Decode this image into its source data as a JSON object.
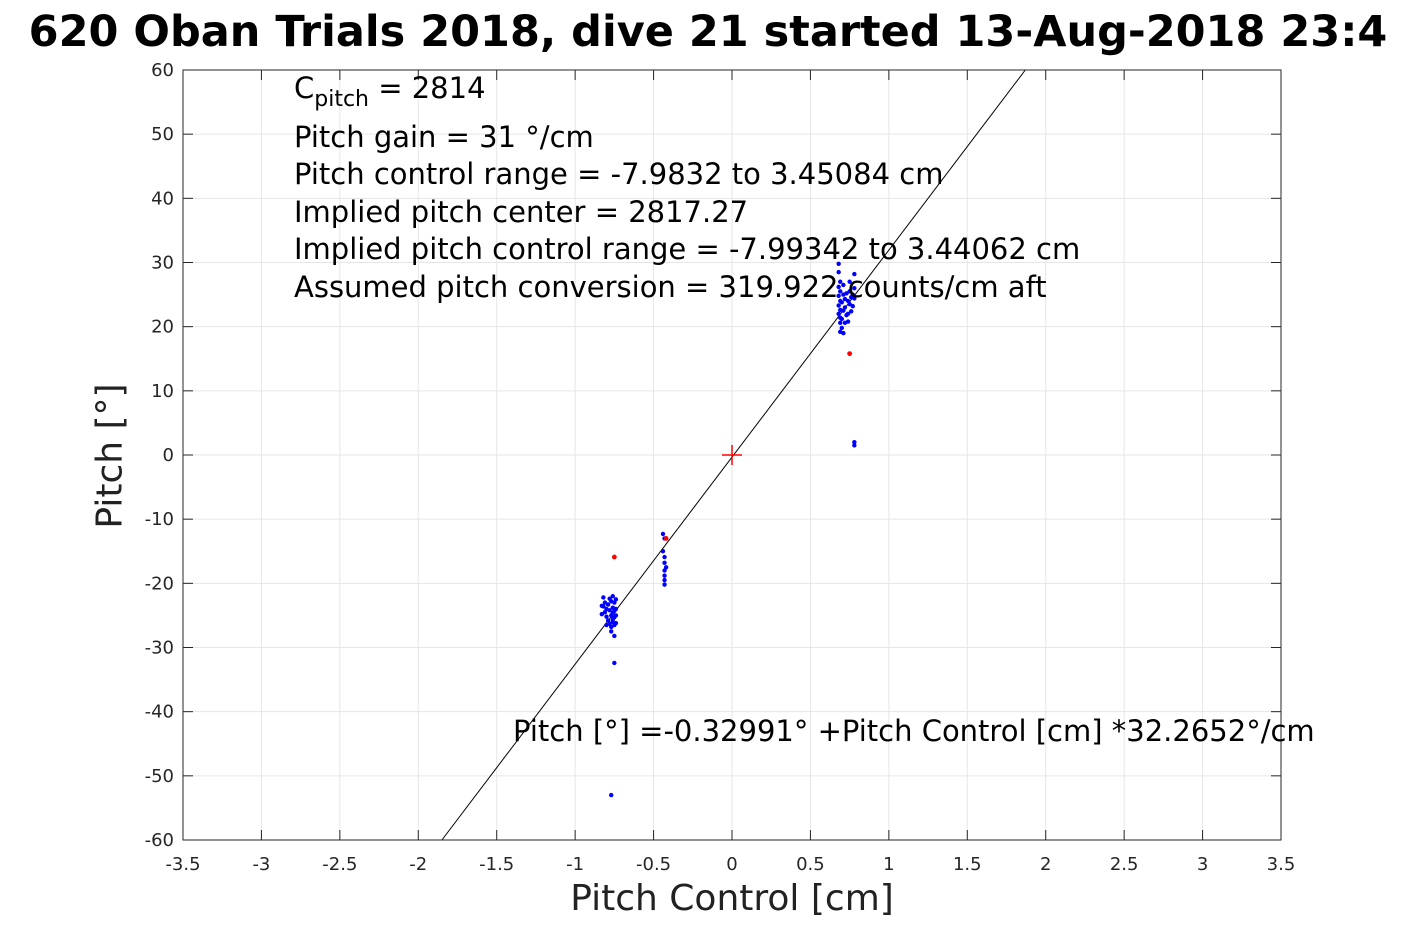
{
  "chart_data": {
    "type": "scatter",
    "title": "620 Oban Trials 2018, dive 21 started 13-Aug-2018 23:4",
    "xlabel": "Pitch Control [cm]",
    "ylabel": "Pitch [°]",
    "xlim": [
      -3.5,
      3.5
    ],
    "ylim": [
      -60,
      60
    ],
    "xticks": [
      -3.5,
      -3,
      -2.5,
      -2,
      -1.5,
      -1,
      -0.5,
      0,
      0.5,
      1,
      1.5,
      2,
      2.5,
      3,
      3.5
    ],
    "yticks": [
      -60,
      -50,
      -40,
      -30,
      -20,
      -10,
      0,
      10,
      20,
      30,
      40,
      50,
      60
    ],
    "xtick_labels": [
      "-3.5",
      "-3",
      "-2.5",
      "-2",
      "-1.5",
      "-1",
      "-0.5",
      "0",
      "0.5",
      "1",
      "1.5",
      "2",
      "2.5",
      "3",
      "3.5"
    ],
    "ytick_labels": [
      "-60",
      "-50",
      "-40",
      "-30",
      "-20",
      "-10",
      "0",
      "10",
      "20",
      "30",
      "40",
      "50",
      "60"
    ],
    "grid": true,
    "annotations": {
      "c_pitch_symbol": "C",
      "c_pitch_sub": "pitch",
      "c_pitch_value": " = 2814",
      "gain": "Pitch gain = 31 °/cm",
      "control_range": "Pitch control range = -7.9832 to 3.45084 cm",
      "implied_center": "Implied pitch center = 2817.27",
      "implied_range": "Implied pitch control range = -7.99342 to 3.44062 cm",
      "conversion": "Assumed pitch conversion = 319.922 counts/cm aft",
      "fit_equation": "Pitch [°] =-0.32991° +Pitch Control [cm] *32.2652°/cm"
    },
    "fit_line": {
      "intercept": -0.32991,
      "slope": 32.2652,
      "color": "#000000"
    },
    "center_marker": {
      "x": 0,
      "y": 0,
      "color": "#ff0000"
    },
    "series_blue": {
      "color": "#0000ff",
      "points": [
        [
          -0.82,
          -22.2
        ],
        [
          -0.81,
          -23.0
        ],
        [
          -0.82,
          -23.6
        ],
        [
          -0.8,
          -24.0
        ],
        [
          -0.81,
          -24.5
        ],
        [
          -0.79,
          -23.3
        ],
        [
          -0.8,
          -25.2
        ],
        [
          -0.79,
          -25.8
        ],
        [
          -0.78,
          -24.2
        ],
        [
          -0.78,
          -26.3
        ],
        [
          -0.77,
          -25.0
        ],
        [
          -0.77,
          -22.8
        ],
        [
          -0.77,
          -26.8
        ],
        [
          -0.77,
          -27.5
        ],
        [
          -0.76,
          -22.0
        ],
        [
          -0.76,
          -23.8
        ],
        [
          -0.76,
          -24.6
        ],
        [
          -0.76,
          -25.6
        ],
        [
          -0.76,
          -26.0
        ],
        [
          -0.75,
          -23.0
        ],
        [
          -0.75,
          -24.3
        ],
        [
          -0.75,
          -25.3
        ],
        [
          -0.75,
          -26.5
        ],
        [
          -0.75,
          -28.2
        ],
        [
          -0.74,
          -22.5
        ],
        [
          -0.74,
          -24.0
        ],
        [
          -0.74,
          -25.0
        ],
        [
          -0.74,
          -26.2
        ],
        [
          -0.83,
          -23.5
        ],
        [
          -0.83,
          -24.8
        ],
        [
          -0.8,
          -26.5
        ],
        [
          -0.78,
          -22.4
        ],
        [
          -0.75,
          -32.4
        ],
        [
          -0.77,
          -53.0
        ],
        [
          -0.44,
          -12.3
        ],
        [
          -0.44,
          -15.0
        ],
        [
          -0.43,
          -15.9
        ],
        [
          -0.43,
          -16.8
        ],
        [
          -0.43,
          -18.0
        ],
        [
          -0.43,
          -18.8
        ],
        [
          -0.43,
          -19.5
        ],
        [
          -0.43,
          -20.2
        ],
        [
          -0.42,
          -17.5
        ],
        [
          -0.43,
          -13.0
        ],
        [
          0.68,
          29.8
        ],
        [
          0.68,
          28.5
        ],
        [
          0.69,
          27.0
        ],
        [
          0.68,
          26.2
        ],
        [
          0.69,
          25.5
        ],
        [
          0.68,
          24.8
        ],
        [
          0.69,
          24.0
        ],
        [
          0.68,
          23.3
        ],
        [
          0.69,
          22.6
        ],
        [
          0.68,
          22.0
        ],
        [
          0.69,
          21.4
        ],
        [
          0.69,
          20.6
        ],
        [
          0.7,
          19.8
        ],
        [
          0.69,
          19.2
        ],
        [
          0.71,
          26.5
        ],
        [
          0.71,
          25.0
        ],
        [
          0.7,
          23.8
        ],
        [
          0.71,
          22.5
        ],
        [
          0.7,
          21.2
        ],
        [
          0.72,
          24.3
        ],
        [
          0.72,
          23.0
        ],
        [
          0.72,
          20.6
        ],
        [
          0.73,
          25.2
        ],
        [
          0.73,
          21.8
        ],
        [
          0.74,
          24.0
        ],
        [
          0.74,
          22.0
        ],
        [
          0.75,
          25.5
        ],
        [
          0.75,
          23.5
        ],
        [
          0.76,
          24.6
        ],
        [
          0.76,
          22.4
        ],
        [
          0.77,
          25.0
        ],
        [
          0.77,
          23.2
        ],
        [
          0.78,
          28.2
        ],
        [
          0.78,
          26.0
        ],
        [
          0.78,
          24.4
        ],
        [
          0.74,
          20.8
        ],
        [
          0.71,
          19.0
        ],
        [
          0.75,
          27.0
        ],
        [
          0.78,
          2.0
        ],
        [
          0.78,
          1.5
        ]
      ]
    },
    "series_red": {
      "color": "#ff0000",
      "points": [
        [
          -0.75,
          -15.9
        ],
        [
          -0.42,
          -13.0
        ],
        [
          0.75,
          15.8
        ]
      ]
    }
  }
}
